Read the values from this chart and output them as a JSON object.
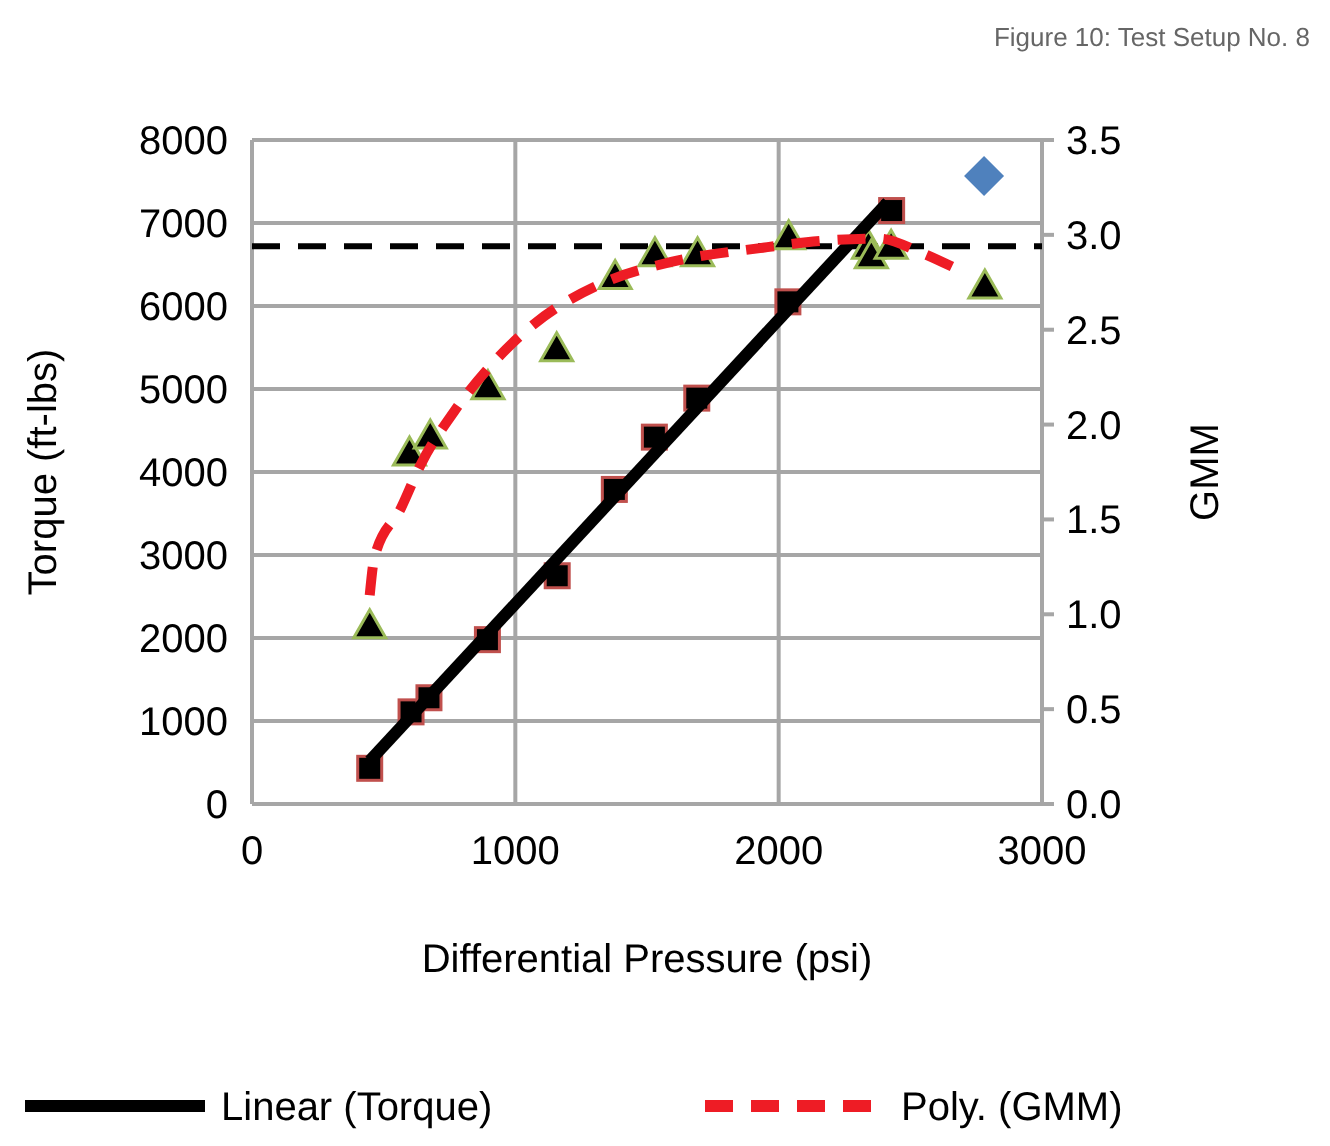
{
  "chart_data": {
    "type": "scatter",
    "title": "Figure 10: Test Setup No. 8",
    "xlabel": "Differential Pressure (psi)",
    "ylabel": "Torque (ft-lbs)",
    "y2label": "GMM",
    "xlim": [
      0,
      3000
    ],
    "xticks": [
      0,
      1000,
      2000,
      3000
    ],
    "ylim": [
      0,
      8000
    ],
    "yticks": [
      0,
      1000,
      2000,
      3000,
      4000,
      5000,
      6000,
      7000,
      8000
    ],
    "y2lim": [
      0,
      3.5
    ],
    "y2ticks": [
      {
        "value": 0,
        "label": "0.0"
      },
      {
        "value": 0.5,
        "label": "0.5"
      },
      {
        "value": 1,
        "label": "1.0"
      },
      {
        "value": 1.5,
        "label": "1.5"
      },
      {
        "value": 2,
        "label": "2.0"
      },
      {
        "value": 2.5,
        "label": "2.5"
      },
      {
        "value": 3,
        "label": "3.0"
      },
      {
        "value": 3.5,
        "label": "3.5"
      }
    ],
    "grid": true,
    "legend": "bottom",
    "ref_lines": [
      {
        "axis": "y2",
        "value": 2.94,
        "color": "#000000",
        "line_style": "dashed"
      }
    ],
    "series": [
      {
        "type": "line",
        "name": "Linear (Torque)",
        "color": "#000000",
        "line_style": "solid",
        "marker": "none",
        "x": [
          447,
          2414
        ],
        "values": [
          520,
          7250
        ]
      },
      {
        "type": "line",
        "name": "Poly. (GMM)",
        "color": "#ee1c25",
        "line_style": "dashed",
        "marker": "none",
        "axis": "y2",
        "x": [
          447,
          465,
          566,
          641,
          768,
          919,
          1071,
          1323,
          1601,
          1929,
          2182,
          2384,
          2535,
          2662
        ],
        "values": [
          1.1,
          1.3,
          1.56,
          1.79,
          2.07,
          2.33,
          2.53,
          2.74,
          2.86,
          2.93,
          2.97,
          2.98,
          2.91,
          2.83
        ]
      },
      {
        "color": "#000000",
        "marker": "square",
        "x": [
          447,
          604,
          672,
          894,
          1159,
          1376,
          1528,
          1689,
          2035,
          2429
        ],
        "values": [
          430,
          1110,
          1280,
          1980,
          2750,
          3790,
          4420,
          4890,
          6050,
          7150
        ]
      },
      {
        "color": "#000000",
        "marker": "triangle",
        "axis": "y2",
        "x": [
          447,
          598,
          677,
          896,
          1157,
          1379,
          1530,
          1692,
          2038,
          2341,
          2352,
          2427,
          2783
        ],
        "values": [
          0.94,
          1.85,
          1.94,
          2.2,
          2.4,
          2.78,
          2.9,
          2.9,
          2.99,
          2.94,
          2.89,
          2.94,
          2.73
        ]
      },
      {
        "color": "#4f81bd",
        "marker": "diamond",
        "axis": "y2",
        "x": [
          2780
        ],
        "values": [
          3.31
        ]
      }
    ]
  }
}
